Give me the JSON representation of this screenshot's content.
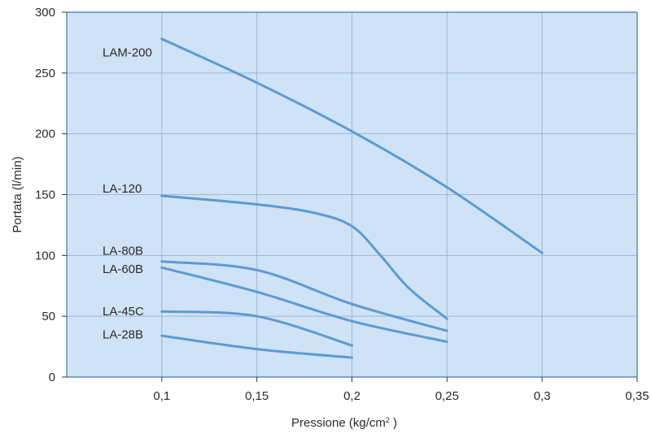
{
  "chart_data": {
    "type": "line",
    "title": "",
    "xlabel": "Pressione (kg/cm",
    "xlabel_sup": "2",
    "xlabel_close": " )",
    "ylabel": "Portata (l/min)",
    "xlim": [
      0.05,
      0.35
    ],
    "ylim": [
      0,
      300
    ],
    "x_ticks": [
      0.1,
      0.15,
      0.2,
      0.25,
      0.3,
      0.35
    ],
    "x_tick_labels": [
      "0,1",
      "0,15",
      "0,2",
      "0,25",
      "0,3",
      "0,35"
    ],
    "y_ticks": [
      0,
      50,
      100,
      150,
      200,
      250,
      300
    ],
    "y_tick_labels": [
      "0",
      "50",
      "100",
      "150",
      "200",
      "250",
      "300"
    ],
    "grid": true,
    "colors": {
      "plot_background": "#cfe2f6",
      "grid": "#9fb7d4",
      "axis": "#3a7db5",
      "line": "#5b9bd5"
    },
    "series": [
      {
        "name": "LAM-200",
        "label_y": 267,
        "x": [
          0.1,
          0.15,
          0.2,
          0.25,
          0.3
        ],
        "values": [
          278,
          242,
          202,
          156,
          102
        ]
      },
      {
        "name": "LA-120",
        "label_y": 155,
        "x": [
          0.1,
          0.15,
          0.18,
          0.2,
          0.215,
          0.23,
          0.25
        ],
        "values": [
          149,
          142,
          135,
          124,
          100,
          73,
          48
        ]
      },
      {
        "name": "LA-80B",
        "label_y": 104,
        "x": [
          0.1,
          0.15,
          0.2,
          0.25
        ],
        "values": [
          95,
          88,
          60,
          38
        ]
      },
      {
        "name": "LA-60B",
        "label_y": 89,
        "x": [
          0.1,
          0.15,
          0.2,
          0.25
        ],
        "values": [
          90,
          70,
          46,
          29
        ]
      },
      {
        "name": "LA-45C",
        "label_y": 54,
        "x": [
          0.1,
          0.15,
          0.2
        ],
        "values": [
          54,
          50,
          26
        ]
      },
      {
        "name": "LA-28B",
        "label_y": 35,
        "x": [
          0.1,
          0.15,
          0.2
        ],
        "values": [
          34,
          23,
          16
        ]
      }
    ]
  }
}
